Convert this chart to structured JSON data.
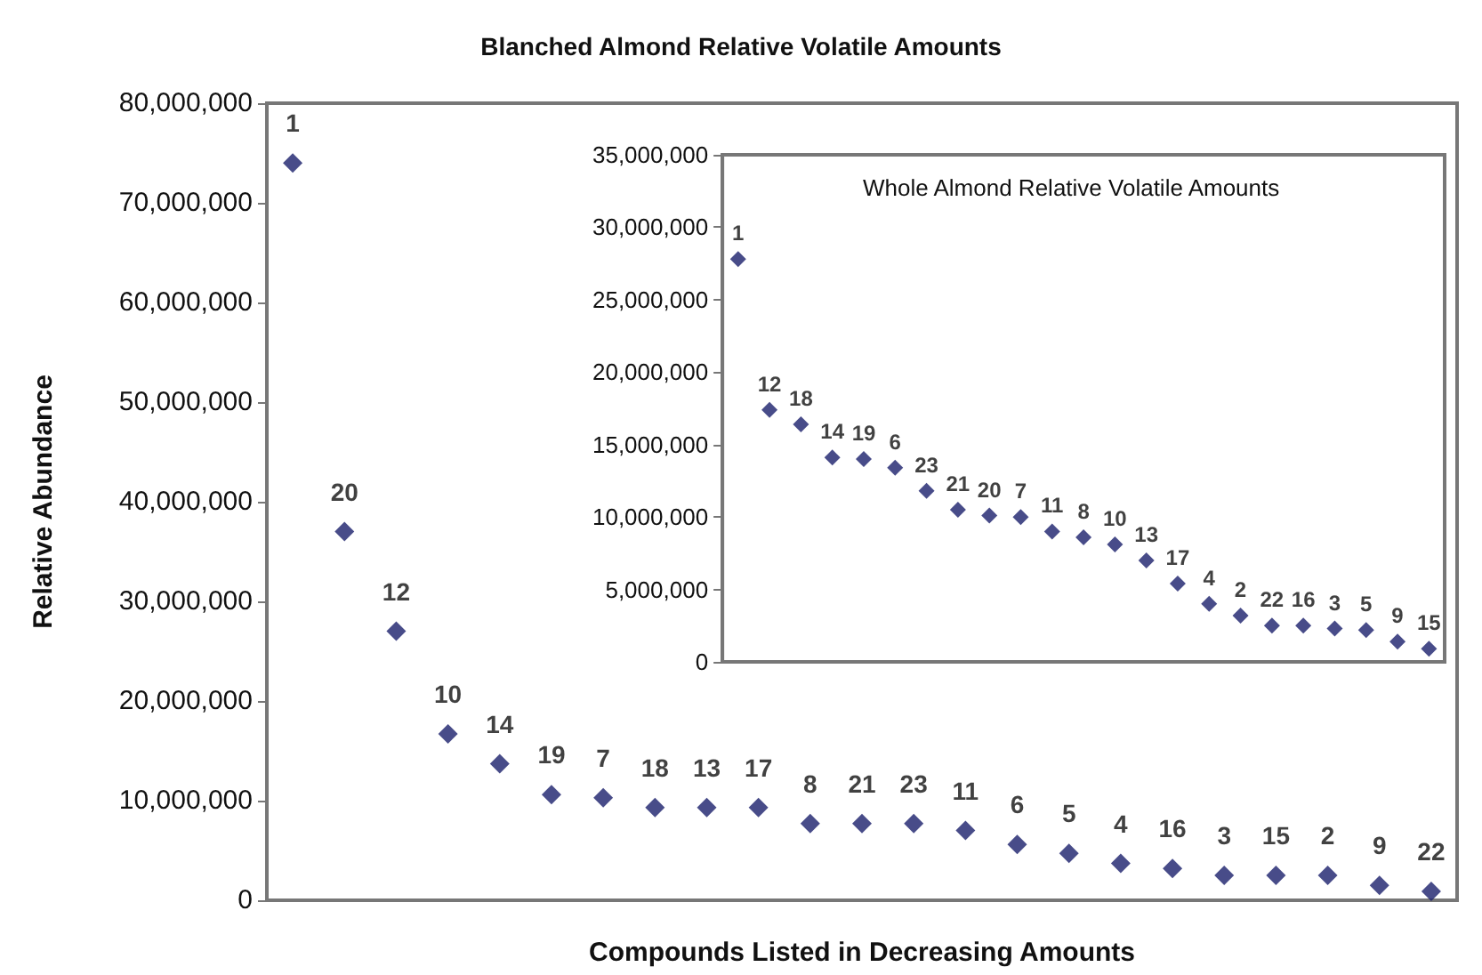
{
  "chart_data": [
    {
      "type": "scatter",
      "title": "Blanched Almond Relative Volatile Amounts",
      "xlabel": "Compounds Listed in Decreasing Amounts",
      "ylabel": "Relative Abundance",
      "categories": [
        "1",
        "20",
        "12",
        "10",
        "14",
        "19",
        "7",
        "18",
        "13",
        "17",
        "8",
        "21",
        "23",
        "11",
        "6",
        "5",
        "4",
        "16",
        "3",
        "15",
        "2",
        "9",
        "22"
      ],
      "series": [
        {
          "color": "#1a1f6b",
          "values": [
            74000000,
            37000000,
            27000000,
            16700000,
            13700000,
            10600000,
            10300000,
            9300000,
            9300000,
            9300000,
            7700000,
            7700000,
            7700000,
            7000000,
            5600000,
            4700000,
            3700000,
            3200000,
            2500000,
            2500000,
            2500000,
            1500000,
            900000
          ]
        }
      ],
      "ylim": [
        0,
        80000000
      ],
      "yticks": [
        {
          "value": 0,
          "label": "0"
        },
        {
          "value": 10000000,
          "label": "10,000,000"
        },
        {
          "value": 20000000,
          "label": "20,000,000"
        },
        {
          "value": 30000000,
          "label": "30,000,000"
        },
        {
          "value": 40000000,
          "label": "40,000,000"
        },
        {
          "value": 50000000,
          "label": "50,000,000"
        },
        {
          "value": 60000000,
          "label": "60,000,000"
        },
        {
          "value": 70000000,
          "label": "70,000,000"
        },
        {
          "value": 80000000,
          "label": "80,000,000"
        }
      ],
      "marker": "diamond",
      "grid": false,
      "tick_labels": "y"
    },
    {
      "type": "scatter",
      "title": "Whole Almond Relative Volatile Amounts",
      "categories": [
        "1",
        "12",
        "18",
        "14",
        "19",
        "6",
        "23",
        "21",
        "20",
        "7",
        "11",
        "8",
        "10",
        "13",
        "17",
        "4",
        "2",
        "22",
        "16",
        "3",
        "5",
        "9",
        "15"
      ],
      "series": [
        {
          "color": "#1a1f6b",
          "values": [
            27800000,
            17400000,
            16400000,
            14100000,
            14000000,
            13400000,
            11800000,
            10500000,
            10100000,
            10000000,
            9000000,
            8600000,
            8100000,
            7000000,
            5400000,
            4000000,
            3200000,
            2500000,
            2500000,
            2300000,
            2200000,
            1400000,
            900000
          ]
        }
      ],
      "ylim": [
        0,
        35000000
      ],
      "yticks": [
        {
          "value": 0,
          "label": "0"
        },
        {
          "value": 5000000,
          "label": "5,000,000"
        },
        {
          "value": 10000000,
          "label": "10,000,000"
        },
        {
          "value": 15000000,
          "label": "15,000,000"
        },
        {
          "value": 20000000,
          "label": "20,000,000"
        },
        {
          "value": 25000000,
          "label": "25,000,000"
        },
        {
          "value": 30000000,
          "label": "30,000,000"
        },
        {
          "value": 35000000,
          "label": "35,000,000"
        }
      ],
      "marker": "diamond",
      "grid": false,
      "tick_labels": "y"
    }
  ]
}
